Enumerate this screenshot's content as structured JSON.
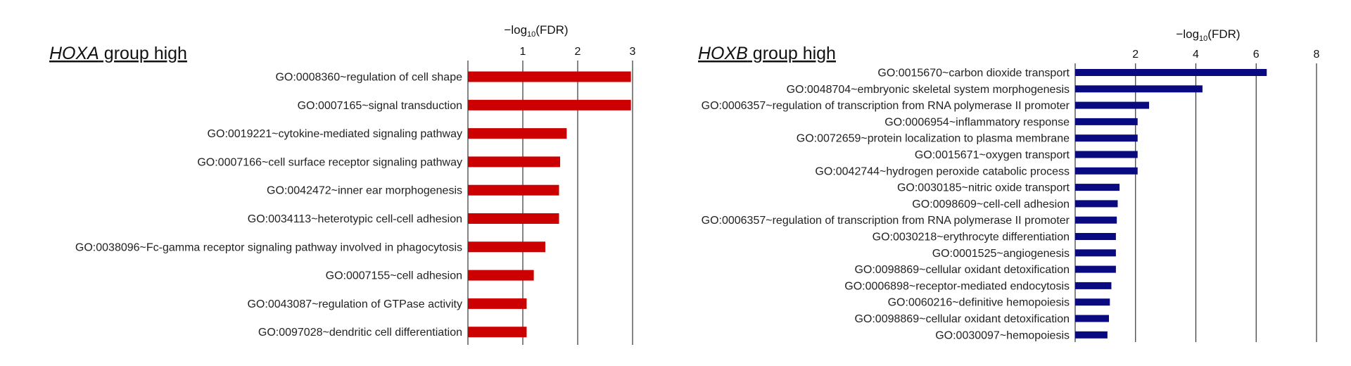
{
  "chart_data": [
    {
      "type": "bar",
      "orientation": "horizontal",
      "title_italic": "HOXA",
      "title_rest": " group high",
      "axis_title_prefix": "−log",
      "axis_title_sub": "10",
      "axis_title_suffix": "(FDR)",
      "xlim": [
        0,
        3
      ],
      "xticks": [
        "1",
        "2",
        "3"
      ],
      "grid": true,
      "color": "#cc0000",
      "categories": [
        "GO:0008360~regulation of cell shape",
        "GO:0007165~signal transduction",
        "GO:0019221~cytokine-mediated signaling pathway",
        "GO:0007166~cell surface receptor signaling pathway",
        "GO:0042472~inner ear morphogenesis",
        "GO:0034113~heterotypic cell-cell adhesion",
        "GO:0038096~Fc-gamma receptor signaling pathway involved in phagocytosis",
        "GO:0007155~cell adhesion",
        "GO:0043087~regulation of GTPase activity",
        "GO:0097028~dendritic cell differentiation"
      ],
      "values": [
        2.97,
        2.97,
        1.8,
        1.68,
        1.66,
        1.66,
        1.41,
        1.2,
        1.07,
        1.07
      ]
    },
    {
      "type": "bar",
      "orientation": "horizontal",
      "title_italic": "HOXB",
      "title_rest": " group high",
      "axis_title_prefix": "−log",
      "axis_title_sub": "10",
      "axis_title_suffix": "(FDR)",
      "xlim": [
        0,
        8
      ],
      "xticks": [
        "2",
        "4",
        "6",
        "8"
      ],
      "grid": true,
      "color": "#0a0a80",
      "categories": [
        "GO:0015670~carbon dioxide transport",
        "GO:0048704~embryonic skeletal system morphogenesis",
        "GO:0006357~regulation of transcription from RNA polymerase II promoter",
        "GO:0006954~inflammatory response",
        "GO:0072659~protein localization to plasma membrane",
        "GO:0015671~oxygen transport",
        "GO:0042744~hydrogen peroxide catabolic process",
        "GO:0030185~nitric oxide transport",
        "GO:0098609~cell-cell adhesion",
        "GO:0006357~regulation of transcription from RNA polymerase II promoter",
        "GO:0030218~erythrocyte differentiation",
        "GO:0001525~angiogenesis",
        "GO:0098869~cellular oxidant detoxification",
        "GO:0006898~receptor-mediated endocytosis",
        "GO:0060216~definitive hemopoiesis",
        "GO:0098869~cellular oxidant detoxification",
        "GO:0030097~hemopoiesis"
      ],
      "values": [
        6.35,
        4.22,
        2.45,
        2.07,
        2.07,
        2.07,
        2.07,
        1.47,
        1.41,
        1.38,
        1.35,
        1.35,
        1.35,
        1.2,
        1.15,
        1.12,
        1.07
      ]
    }
  ]
}
